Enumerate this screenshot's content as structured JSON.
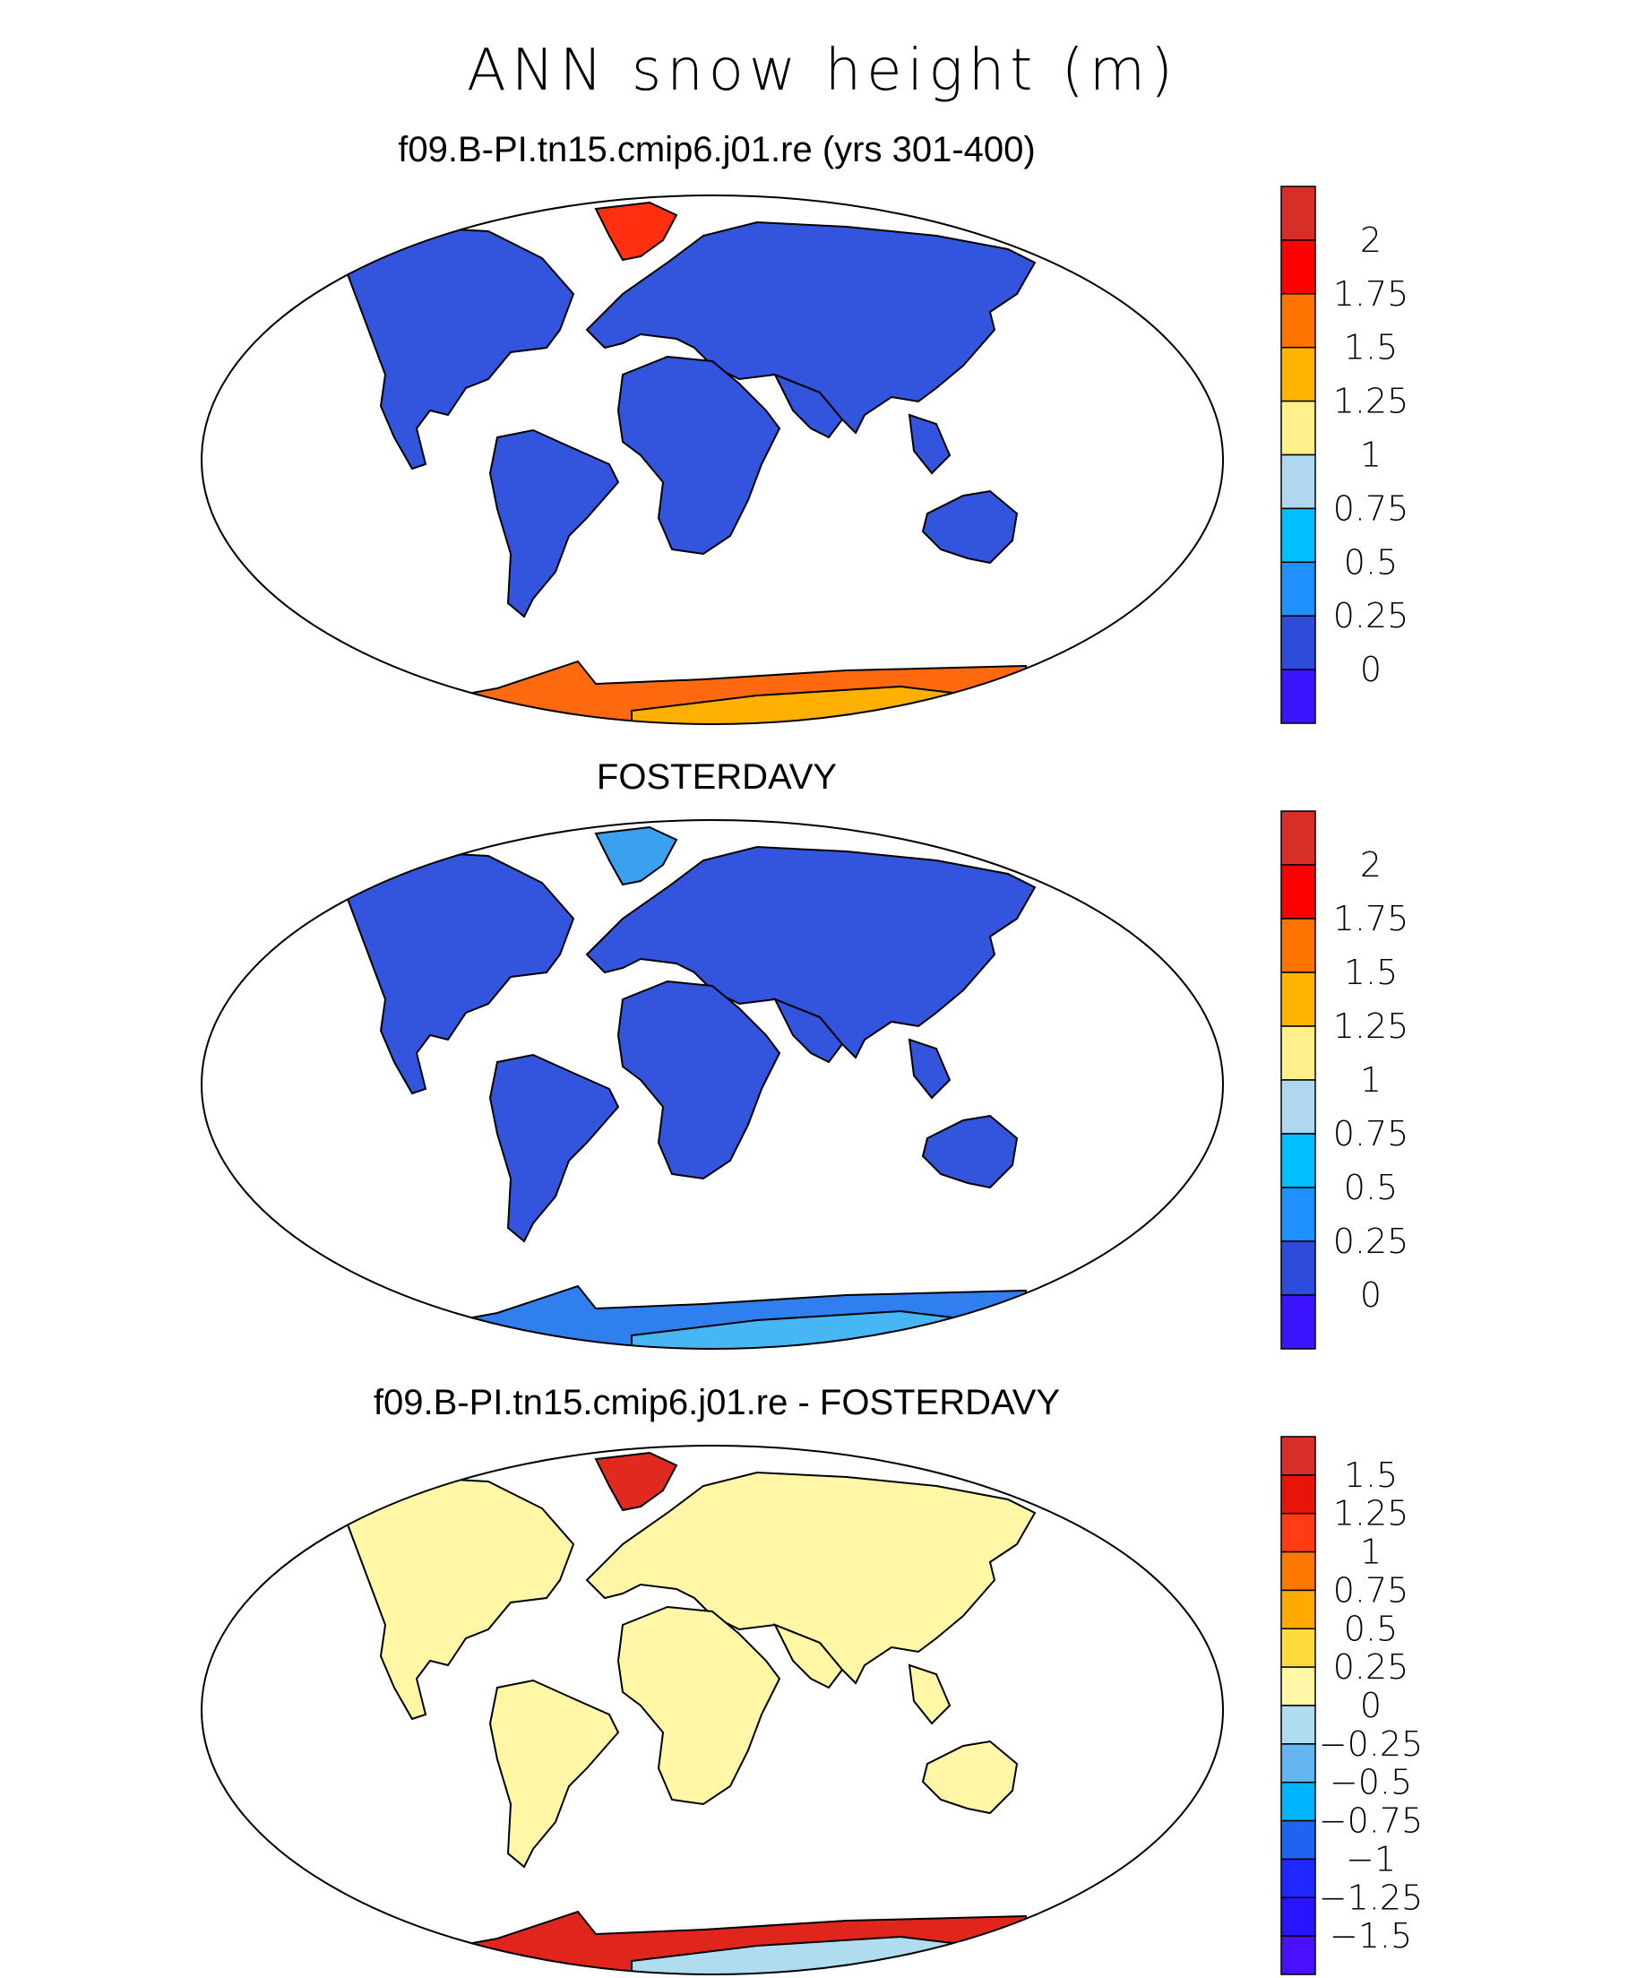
{
  "title": "ANN snow height (m)",
  "panels": [
    {
      "title": "f09.B-PI.tn15.cmip6.j01.re (yrs 301-400)",
      "colorbar": {
        "labels": [
          "2",
          "1.75",
          "1.5",
          "1.25",
          "1",
          "0.75",
          "0.5",
          "0.25",
          "0"
        ],
        "colors": [
          "#d62f27",
          "#ff0000",
          "#ff7300",
          "#ffb400",
          "#fff08c",
          "#afd7f0",
          "#00bfff",
          "#1e90ff",
          "#2e4cdc",
          "#3c14ff"
        ]
      }
    },
    {
      "title": "FOSTERDAVY",
      "colorbar": {
        "labels": [
          "2",
          "1.75",
          "1.5",
          "1.25",
          "1",
          "0.75",
          "0.5",
          "0.25",
          "0"
        ],
        "colors": [
          "#d62f27",
          "#ff0000",
          "#ff7300",
          "#ffb400",
          "#fff08c",
          "#afd7f0",
          "#00bfff",
          "#1e90ff",
          "#2e4cdc",
          "#3c14ff"
        ]
      }
    },
    {
      "title": "f09.B-PI.tn15.cmip6.j01.re - FOSTERDAVY",
      "colorbar": {
        "labels": [
          "1.5",
          "1.25",
          "1",
          "0.75",
          "0.5",
          "0.25",
          "0",
          "−0.25",
          "−0.5",
          "−0.75",
          "−1",
          "−1.25",
          "−1.5"
        ],
        "colors": [
          "#d62f27",
          "#e8140a",
          "#ff3c14",
          "#ff7800",
          "#ffaa00",
          "#ffdc3c",
          "#fff6a6",
          "#b0dcf0",
          "#64b4f0",
          "#00b4ff",
          "#1e64f0",
          "#1e28ff",
          "#2814ff",
          "#4b0fff"
        ]
      }
    }
  ],
  "map_colors": {
    "land_p1": "#3355dd",
    "land_p2": "#3355dd",
    "land_p3": "#fff6a6",
    "greenland_p1": "#ff3010",
    "greenland_p2": "#3aa0f0",
    "greenland_p3": "#e02a20",
    "antarctica_p1": "#ff6a10",
    "antarctica_p2": "#2f7fee",
    "antarctica_p3": "#e0261c",
    "accent_p1": "#ffb000",
    "accent_p2": "#46b6f5",
    "accent_p3": "#b0dcf0"
  }
}
